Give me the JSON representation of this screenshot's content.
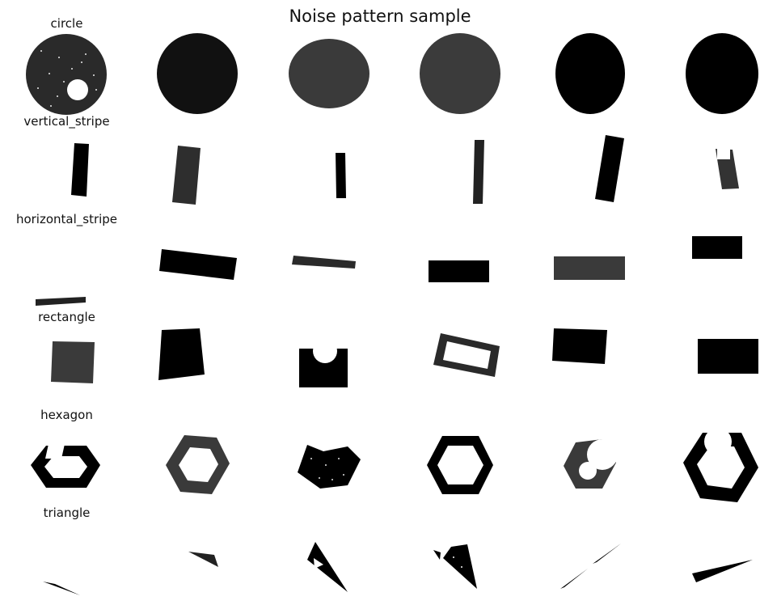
{
  "figure": {
    "title": "Noise pattern sample",
    "rows": [
      {
        "label": "circle"
      },
      {
        "label": "vertical_stripe"
      },
      {
        "label": "horizontal_stripe"
      },
      {
        "label": "rectangle"
      },
      {
        "label": "hexagon"
      },
      {
        "label": "triangle"
      }
    ]
  }
}
